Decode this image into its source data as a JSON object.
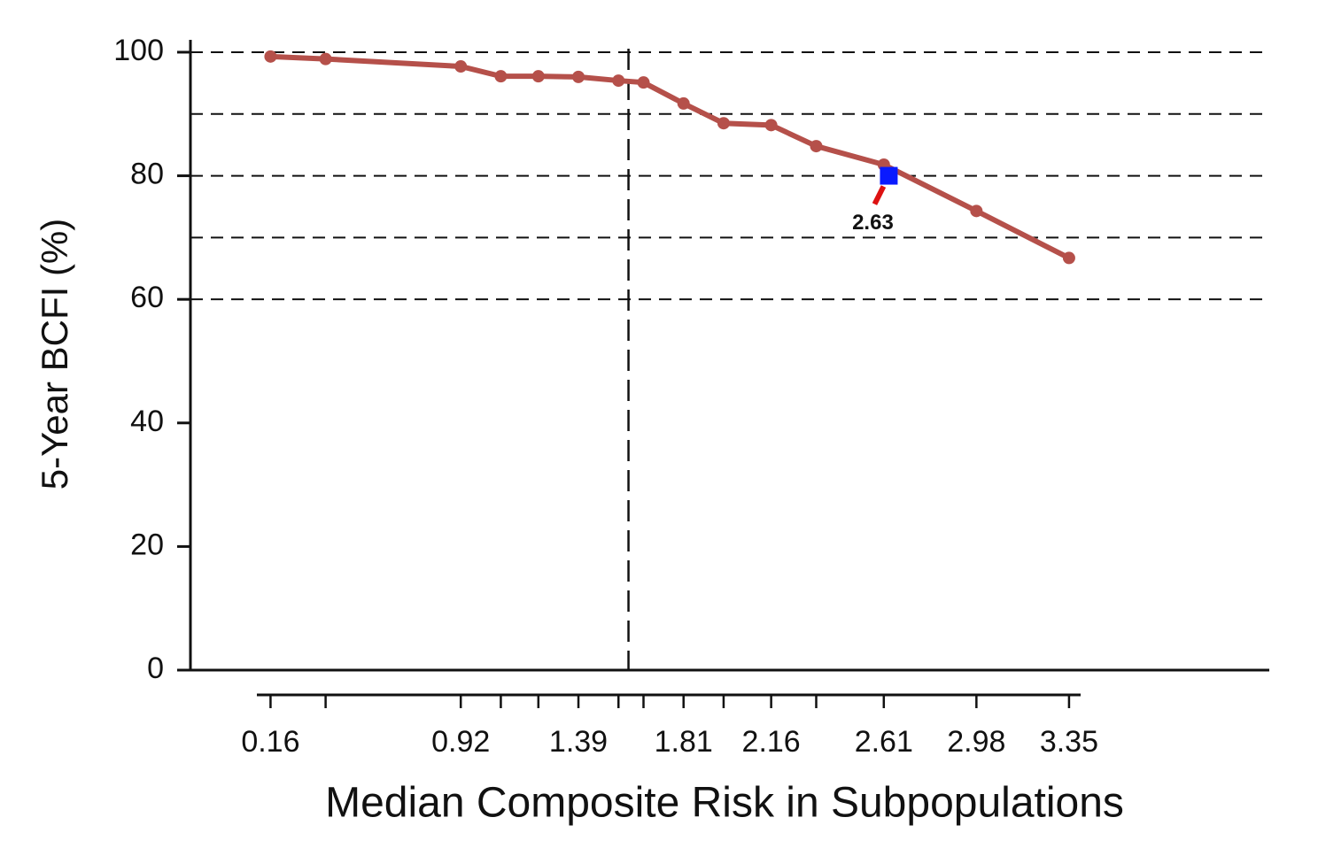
{
  "chart_data": {
    "type": "line",
    "x_label": "Median Composite Risk in Subpopulations",
    "y_label": "5-Year BCFI (%)",
    "x": [
      0.16,
      0.38,
      0.92,
      1.08,
      1.23,
      1.39,
      1.55,
      1.65,
      1.81,
      1.97,
      2.16,
      2.34,
      2.61,
      2.98,
      3.35
    ],
    "series": [
      {
        "color": "#b5504a",
        "values": [
          99.3,
          98.9,
          97.7,
          96.1,
          96.1,
          96.0,
          95.4,
          95.1,
          91.7,
          88.5,
          88.2,
          84.8,
          81.8,
          74.3,
          66.7
        ]
      }
    ],
    "xlim": [
      -0.16,
      4.15
    ],
    "ylim": [
      0,
      102
    ],
    "xticks": [
      0.16,
      0.92,
      1.39,
      1.81,
      2.16,
      2.61,
      2.98,
      3.35
    ],
    "yticks": [
      0,
      20,
      40,
      60,
      80,
      100
    ],
    "hlines": [
      60,
      70,
      80,
      90,
      100
    ],
    "vline": 1.59,
    "marker": {
      "x": 2.63,
      "y": 80,
      "label": "2.63",
      "color": "#0a1aff"
    }
  }
}
